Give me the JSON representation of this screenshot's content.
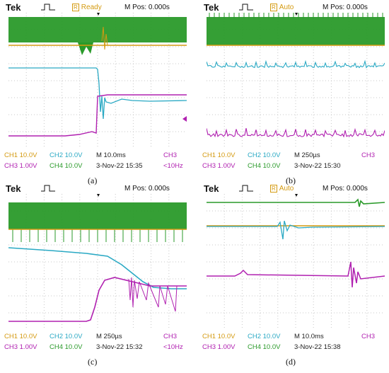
{
  "panels": [
    {
      "brand": "Tek",
      "status": "Ready",
      "mpos": "M Pos: 0.000s",
      "ch1": "CH1  10.0V",
      "ch2": "CH2  10.0V",
      "ch3": "CH3  1.00V",
      "ch4": "CH4  10.0V",
      "timebase": "M 10.0ms",
      "datetime": "3-Nov-22 15:35",
      "trigger_ch": "CH3",
      "trigger_freq": "<10Hz",
      "caption": "(a)"
    },
    {
      "brand": "Tek",
      "status": "Auto",
      "mpos": "M Pos: 0.000s",
      "ch1": "CH1  10.0V",
      "ch2": "CH2  10.0V",
      "ch3": "CH3  1.00V",
      "ch4": "CH4  10.0V",
      "timebase": "M 250µs",
      "datetime": "3-Nov-22 15:30",
      "trigger_ch": "CH3",
      "trigger_freq": "",
      "caption": "(b)"
    },
    {
      "brand": "Tek",
      "status": "",
      "mpos": "M Pos: 0.000s",
      "ch1": "CH1  10.0V",
      "ch2": "CH2  10.0V",
      "ch3": "CH3  1.00V",
      "ch4": "CH4  10.0V",
      "timebase": "M 250µs",
      "datetime": "3-Nov-22 15:32",
      "trigger_ch": "CH3",
      "trigger_freq": "<10Hz",
      "caption": "(c)"
    },
    {
      "brand": "Tek",
      "status": "Auto",
      "mpos": "M Pos: 0.000s",
      "ch1": "CH1  10.0V",
      "ch2": "CH2  10.0V",
      "ch3": "CH3  1.00V",
      "ch4": "CH4  10.0V",
      "timebase": "M 10.0ms",
      "datetime": "3-Nov-22 15:38",
      "trigger_ch": "CH3",
      "trigger_freq": "",
      "caption": "(d)"
    }
  ],
  "colors": {
    "ch1": "#d49a10",
    "ch2": "#2aa9c4",
    "ch3": "#b020b0",
    "ch4": "#2a9a2a",
    "grid": "#c8c8c8"
  },
  "icons": {
    "trigger_pulse": "pulse-icon",
    "trigger_point": "trigger-arrow-icon"
  }
}
